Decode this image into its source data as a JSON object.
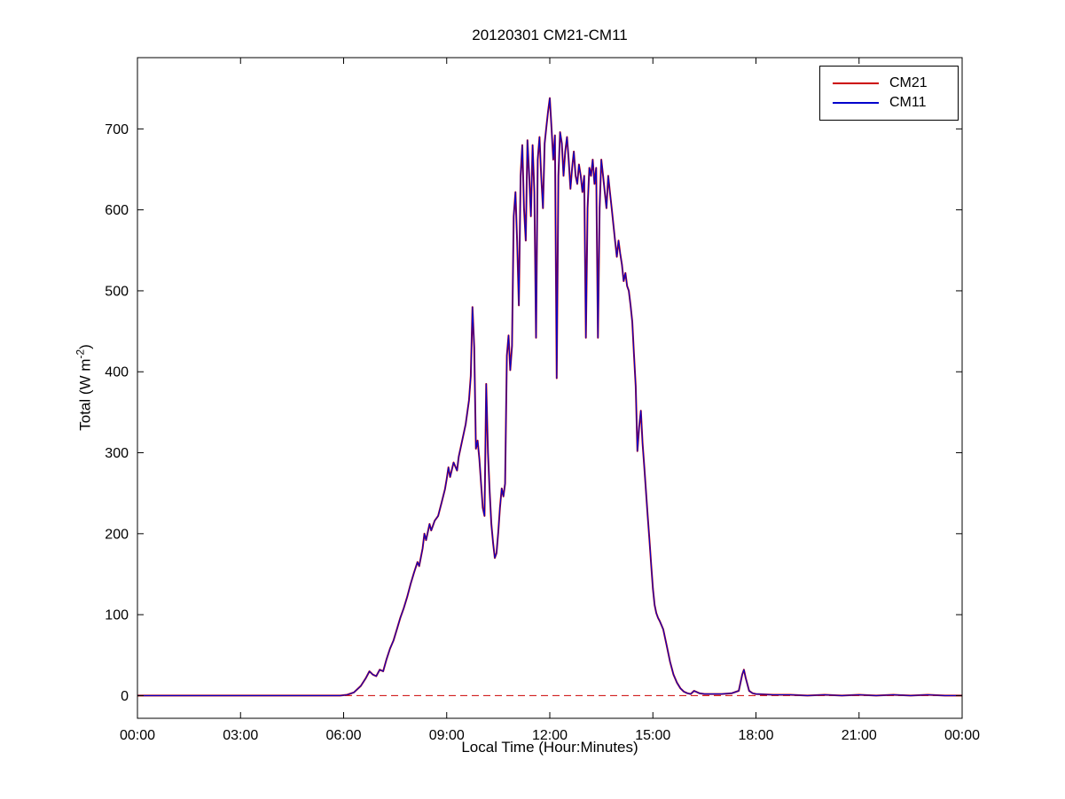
{
  "chart_data": {
    "type": "line",
    "title": "20120301 CM21-CM11",
    "xlabel": "Local Time (Hour:Minutes)",
    "ylabel": "Total (W m^-2)",
    "ylabel_parts": {
      "pre": "Total (W m",
      "sup": "-2",
      "post": ")"
    },
    "xlim": [
      0,
      24
    ],
    "ylim": [
      -28,
      788
    ],
    "grid": false,
    "x_tick_values": [
      0,
      3,
      6,
      9,
      12,
      15,
      18,
      21,
      24
    ],
    "x_tick_labels": [
      "00:00",
      "03:00",
      "06:00",
      "09:00",
      "12:00",
      "15:00",
      "18:00",
      "21:00",
      "00:00"
    ],
    "y_tick_values": [
      0,
      100,
      200,
      300,
      400,
      500,
      600,
      700
    ],
    "y_tick_labels": [
      "0",
      "100",
      "200",
      "300",
      "400",
      "500",
      "600",
      "700"
    ],
    "legend": {
      "position": "top-right",
      "entries": [
        {
          "label": "CM21",
          "color": "#cc0000",
          "style": "solid"
        },
        {
          "label": "CM11",
          "color": "#0000cc",
          "style": "solid"
        }
      ]
    },
    "zero_reference_line": {
      "y": 0,
      "color": "#cc0000",
      "style": "dashed"
    },
    "columns": [
      "hour",
      "CM21",
      "CM11"
    ],
    "points": [
      [
        0,
        0,
        0
      ],
      [
        0.5,
        0,
        0
      ],
      [
        1,
        0,
        0
      ],
      [
        1.5,
        0,
        0
      ],
      [
        2,
        0,
        0
      ],
      [
        2.5,
        0,
        0
      ],
      [
        3,
        0,
        0
      ],
      [
        3.5,
        0,
        0
      ],
      [
        4,
        0,
        0
      ],
      [
        4.5,
        0,
        0
      ],
      [
        5,
        0,
        0
      ],
      [
        5.5,
        0,
        0
      ],
      [
        5.9,
        0,
        0
      ],
      [
        6.1,
        1,
        1
      ],
      [
        6.3,
        4,
        4
      ],
      [
        6.5,
        12,
        12
      ],
      [
        6.65,
        22,
        22
      ],
      [
        6.75,
        30,
        30
      ],
      [
        6.85,
        26,
        26
      ],
      [
        6.95,
        24,
        24
      ],
      [
        7.05,
        32,
        32
      ],
      [
        7.15,
        30,
        30
      ],
      [
        7.25,
        45,
        45
      ],
      [
        7.35,
        58,
        58
      ],
      [
        7.45,
        68,
        68
      ],
      [
        7.55,
        82,
        82
      ],
      [
        7.65,
        96,
        96
      ],
      [
        7.75,
        108,
        108
      ],
      [
        7.85,
        122,
        122
      ],
      [
        7.95,
        138,
        138
      ],
      [
        8.05,
        152,
        152
      ],
      [
        8.15,
        165,
        165
      ],
      [
        8.2,
        160,
        160
      ],
      [
        8.3,
        182,
        182
      ],
      [
        8.35,
        200,
        200
      ],
      [
        8.4,
        192,
        192
      ],
      [
        8.5,
        212,
        212
      ],
      [
        8.55,
        204,
        204
      ],
      [
        8.65,
        216,
        216
      ],
      [
        8.75,
        222,
        222
      ],
      [
        8.85,
        238,
        238
      ],
      [
        8.95,
        255,
        255
      ],
      [
        9.0,
        268,
        268
      ],
      [
        9.05,
        282,
        282
      ],
      [
        9.1,
        270,
        270
      ],
      [
        9.2,
        288,
        288
      ],
      [
        9.3,
        278,
        278
      ],
      [
        9.35,
        295,
        295
      ],
      [
        9.45,
        315,
        315
      ],
      [
        9.55,
        335,
        335
      ],
      [
        9.65,
        365,
        365
      ],
      [
        9.7,
        395,
        395
      ],
      [
        9.75,
        480,
        480
      ],
      [
        9.8,
        430,
        430
      ],
      [
        9.85,
        305,
        305
      ],
      [
        9.9,
        315,
        315
      ],
      [
        9.95,
        292,
        292
      ],
      [
        10.0,
        262,
        262
      ],
      [
        10.05,
        232,
        232
      ],
      [
        10.1,
        222,
        222
      ],
      [
        10.15,
        385,
        385
      ],
      [
        10.2,
        300,
        300
      ],
      [
        10.25,
        252,
        252
      ],
      [
        10.3,
        212,
        212
      ],
      [
        10.35,
        188,
        188
      ],
      [
        10.4,
        170,
        170
      ],
      [
        10.45,
        176,
        176
      ],
      [
        10.5,
        202,
        202
      ],
      [
        10.55,
        232,
        232
      ],
      [
        10.6,
        256,
        256
      ],
      [
        10.65,
        246,
        246
      ],
      [
        10.7,
        262,
        262
      ],
      [
        10.75,
        420,
        420
      ],
      [
        10.8,
        445,
        445
      ],
      [
        10.85,
        402,
        402
      ],
      [
        10.9,
        432,
        432
      ],
      [
        10.95,
        592,
        592
      ],
      [
        11.0,
        622,
        622
      ],
      [
        11.05,
        560,
        560
      ],
      [
        11.1,
        482,
        482
      ],
      [
        11.15,
        642,
        642
      ],
      [
        11.2,
        680,
        680
      ],
      [
        11.25,
        602,
        602
      ],
      [
        11.3,
        562,
        562
      ],
      [
        11.35,
        686,
        686
      ],
      [
        11.4,
        642,
        642
      ],
      [
        11.45,
        592,
        592
      ],
      [
        11.5,
        680,
        680
      ],
      [
        11.55,
        622,
        622
      ],
      [
        11.6,
        442,
        442
      ],
      [
        11.65,
        662,
        662
      ],
      [
        11.7,
        690,
        690
      ],
      [
        11.75,
        642,
        642
      ],
      [
        11.8,
        602,
        602
      ],
      [
        11.85,
        682,
        682
      ],
      [
        11.9,
        702,
        702
      ],
      [
        11.95,
        722,
        722
      ],
      [
        12.0,
        738,
        738
      ],
      [
        12.05,
        702,
        702
      ],
      [
        12.1,
        662,
        662
      ],
      [
        12.15,
        692,
        692
      ],
      [
        12.2,
        392,
        392
      ],
      [
        12.25,
        642,
        642
      ],
      [
        12.3,
        696,
        696
      ],
      [
        12.35,
        682,
        682
      ],
      [
        12.4,
        642,
        642
      ],
      [
        12.45,
        672,
        672
      ],
      [
        12.5,
        690,
        690
      ],
      [
        12.55,
        662,
        662
      ],
      [
        12.6,
        626,
        626
      ],
      [
        12.65,
        652,
        652
      ],
      [
        12.7,
        672,
        672
      ],
      [
        12.75,
        642,
        642
      ],
      [
        12.8,
        632,
        632
      ],
      [
        12.85,
        656,
        656
      ],
      [
        12.9,
        642,
        642
      ],
      [
        12.95,
        622,
        622
      ],
      [
        13.0,
        642,
        642
      ],
      [
        13.05,
        442,
        442
      ],
      [
        13.1,
        602,
        602
      ],
      [
        13.15,
        652,
        652
      ],
      [
        13.2,
        642,
        642
      ],
      [
        13.25,
        662,
        662
      ],
      [
        13.3,
        632,
        632
      ],
      [
        13.35,
        652,
        652
      ],
      [
        13.4,
        442,
        442
      ],
      [
        13.45,
        602,
        602
      ],
      [
        13.5,
        662,
        662
      ],
      [
        13.55,
        642,
        642
      ],
      [
        13.6,
        622,
        622
      ],
      [
        13.65,
        602,
        602
      ],
      [
        13.7,
        642,
        642
      ],
      [
        13.75,
        622,
        622
      ],
      [
        13.8,
        602,
        602
      ],
      [
        13.85,
        582,
        582
      ],
      [
        13.9,
        562,
        562
      ],
      [
        13.95,
        542,
        542
      ],
      [
        14.0,
        562,
        562
      ],
      [
        14.05,
        546,
        546
      ],
      [
        14.1,
        532,
        532
      ],
      [
        14.15,
        512,
        512
      ],
      [
        14.2,
        522,
        522
      ],
      [
        14.25,
        506,
        506
      ],
      [
        14.3,
        500,
        500
      ],
      [
        14.35,
        482,
        482
      ],
      [
        14.4,
        462,
        462
      ],
      [
        14.45,
        422,
        422
      ],
      [
        14.5,
        382,
        382
      ],
      [
        14.55,
        302,
        302
      ],
      [
        14.6,
        332,
        332
      ],
      [
        14.65,
        352,
        352
      ],
      [
        14.7,
        312,
        312
      ],
      [
        14.75,
        282,
        282
      ],
      [
        14.8,
        252,
        252
      ],
      [
        14.85,
        222,
        222
      ],
      [
        14.9,
        192,
        192
      ],
      [
        14.95,
        162,
        162
      ],
      [
        15.0,
        132,
        132
      ],
      [
        15.05,
        112,
        112
      ],
      [
        15.1,
        102,
        102
      ],
      [
        15.15,
        96,
        96
      ],
      [
        15.2,
        92,
        92
      ],
      [
        15.3,
        82,
        82
      ],
      [
        15.4,
        62,
        62
      ],
      [
        15.5,
        42,
        42
      ],
      [
        15.6,
        26,
        26
      ],
      [
        15.7,
        16,
        16
      ],
      [
        15.8,
        9,
        9
      ],
      [
        15.9,
        5,
        5
      ],
      [
        16.0,
        3,
        3
      ],
      [
        16.1,
        2,
        2
      ],
      [
        16.2,
        6,
        6
      ],
      [
        16.35,
        3,
        3
      ],
      [
        16.5,
        2,
        2
      ],
      [
        16.8,
        2,
        2
      ],
      [
        17.0,
        2,
        2
      ],
      [
        17.3,
        3,
        3
      ],
      [
        17.5,
        6,
        6
      ],
      [
        17.6,
        26,
        26
      ],
      [
        17.65,
        32,
        32
      ],
      [
        17.7,
        22,
        22
      ],
      [
        17.8,
        6,
        6
      ],
      [
        17.9,
        3,
        3
      ],
      [
        18.0,
        2,
        2
      ],
      [
        18.5,
        1,
        1
      ],
      [
        19.0,
        1,
        1
      ],
      [
        19.5,
        0,
        0
      ],
      [
        20.0,
        1,
        1
      ],
      [
        20.5,
        0,
        0
      ],
      [
        21.0,
        1,
        1
      ],
      [
        21.5,
        0,
        0
      ],
      [
        22.0,
        1,
        1
      ],
      [
        22.5,
        0,
        0
      ],
      [
        23.0,
        1,
        1
      ],
      [
        23.5,
        0,
        0
      ],
      [
        24.0,
        0,
        0
      ]
    ]
  }
}
